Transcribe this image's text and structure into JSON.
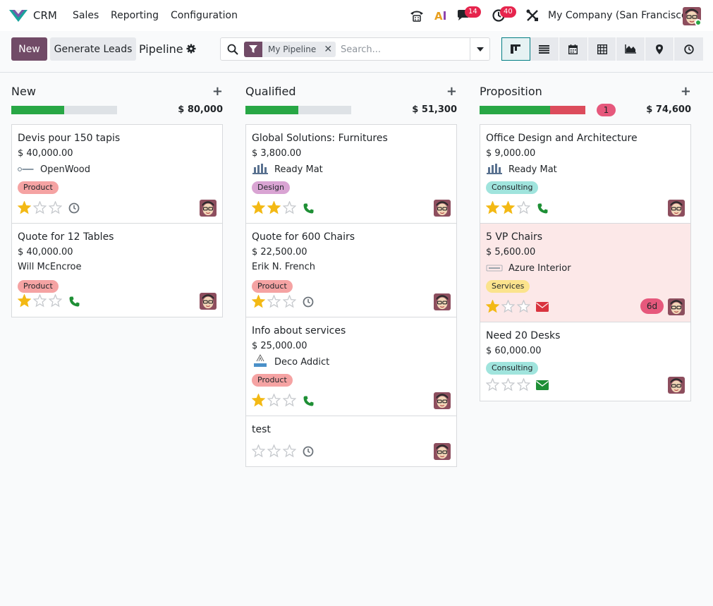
{
  "navbar": {
    "app_name": "CRM",
    "menu": [
      "Sales",
      "Reporting",
      "Configuration"
    ],
    "messages_count": "14",
    "activities_count": "40",
    "company": "My Company (San Francisco)"
  },
  "control": {
    "new_label": "New",
    "generate_label": "Generate Leads",
    "breadcrumb": "Pipeline",
    "facet_label": "My Pipeline",
    "search_placeholder": "Search..."
  },
  "colors": {
    "primary": "#714b67",
    "accent": "#017e84",
    "won": "#28a745",
    "lost": "#dc4c5c"
  },
  "columns": [
    {
      "title": "New",
      "total": "$ 80,000",
      "progress": {
        "green": 0.5,
        "red": 0
      },
      "cards": [
        {
          "title": "Devis pour 150 tapis",
          "amount": "$ 40,000.00",
          "partner": "OpenWood",
          "logo": "openwood",
          "tag": "Product",
          "stars": 1,
          "activity": "clock"
        },
        {
          "title": "Quote for 12 Tables",
          "amount": "$ 40,000.00",
          "partner": "Will McEncroe",
          "logo": "",
          "tag": "Product",
          "stars": 1,
          "activity": "phone"
        }
      ]
    },
    {
      "title": "Qualified",
      "total": "$ 51,300",
      "progress": {
        "green": 0.5,
        "red": 0
      },
      "cards": [
        {
          "title": "Global Solutions: Furnitures",
          "amount": "$ 3,800.00",
          "partner": "Ready Mat",
          "logo": "readymat",
          "tag": "Design",
          "stars": 2,
          "activity": "phone"
        },
        {
          "title": "Quote for 600 Chairs",
          "amount": "$ 22,500.00",
          "partner": "Erik N. French",
          "logo": "",
          "tag": "Product",
          "stars": 1,
          "activity": "clock"
        },
        {
          "title": "Info about services",
          "amount": "$ 25,000.00",
          "partner": "Deco Addict",
          "logo": "deco",
          "tag": "Product",
          "stars": 1,
          "activity": "phone"
        },
        {
          "title": "test",
          "amount": "",
          "partner": "",
          "logo": "",
          "tag": "",
          "stars": 0,
          "activity": "clock"
        }
      ]
    },
    {
      "title": "Proposition",
      "total": "$ 74,600",
      "count_badge": "1",
      "progress": {
        "green": 0.667,
        "red": 0.333
      },
      "cards": [
        {
          "title": "Office Design and Architecture",
          "amount": "$ 9,000.00",
          "partner": "Ready Mat",
          "logo": "readymat",
          "tag": "Consulting",
          "stars": 2,
          "activity": "phone"
        },
        {
          "title": "5 VP Chairs",
          "amount": "$ 5,600.00",
          "partner": "Azure Interior",
          "logo": "azure",
          "tag": "Services",
          "stars": 1,
          "activity": "mail-red",
          "overdue": "6d",
          "highlight": true
        },
        {
          "title": "Need 20 Desks",
          "amount": "$ 60,000.00",
          "partner": "",
          "logo": "",
          "tag": "Consulting",
          "stars": 0,
          "activity": "mail-green"
        }
      ]
    }
  ]
}
